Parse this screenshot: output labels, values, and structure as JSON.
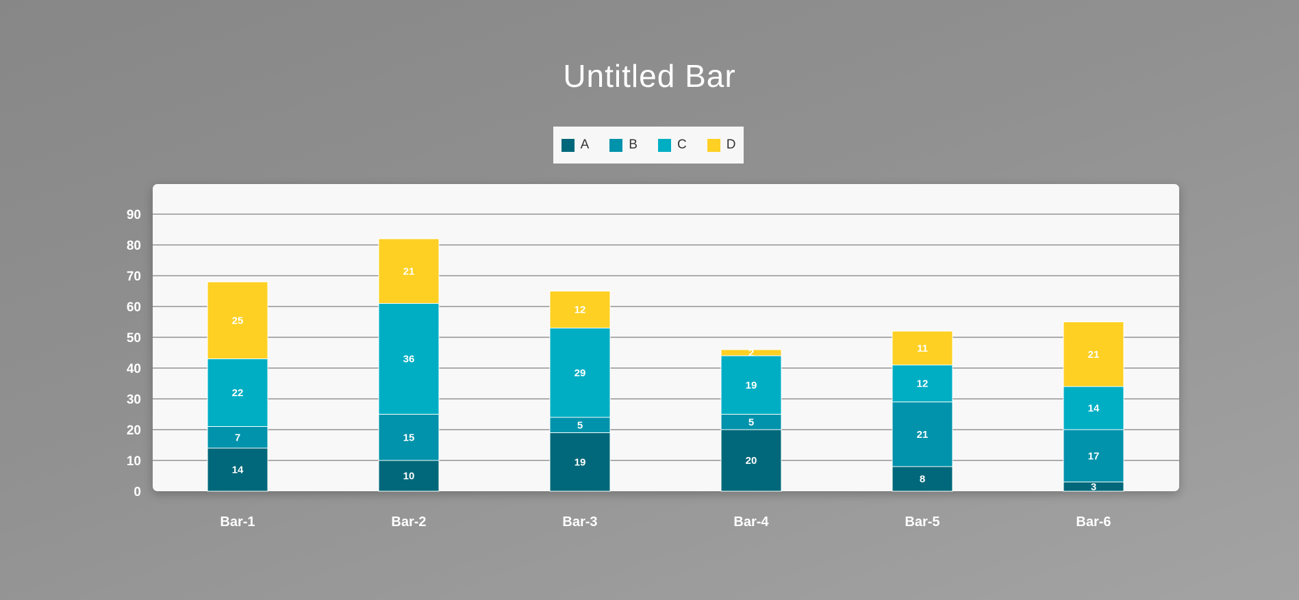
{
  "chart_data": {
    "type": "bar",
    "stacked": true,
    "title": "Untitled Bar",
    "categories": [
      "Bar-1",
      "Bar-2",
      "Bar-3",
      "Bar-4",
      "Bar-5",
      "Bar-6"
    ],
    "series": [
      {
        "name": "A",
        "color": "#00687a",
        "values": [
          14,
          10,
          19,
          20,
          8,
          3
        ]
      },
      {
        "name": "B",
        "color": "#0093ab",
        "values": [
          7,
          15,
          5,
          5,
          21,
          17
        ]
      },
      {
        "name": "C",
        "color": "#00aec4",
        "values": [
          22,
          36,
          29,
          19,
          12,
          14
        ]
      },
      {
        "name": "D",
        "color": "#fdd023",
        "values": [
          25,
          21,
          12,
          2,
          11,
          21
        ]
      }
    ],
    "y_ticks": [
      "0",
      "10",
      "20",
      "30",
      "40",
      "50",
      "60",
      "70",
      "80",
      "90"
    ],
    "ylim": [
      0,
      90
    ],
    "grid": true,
    "legend_position": "top-center"
  }
}
